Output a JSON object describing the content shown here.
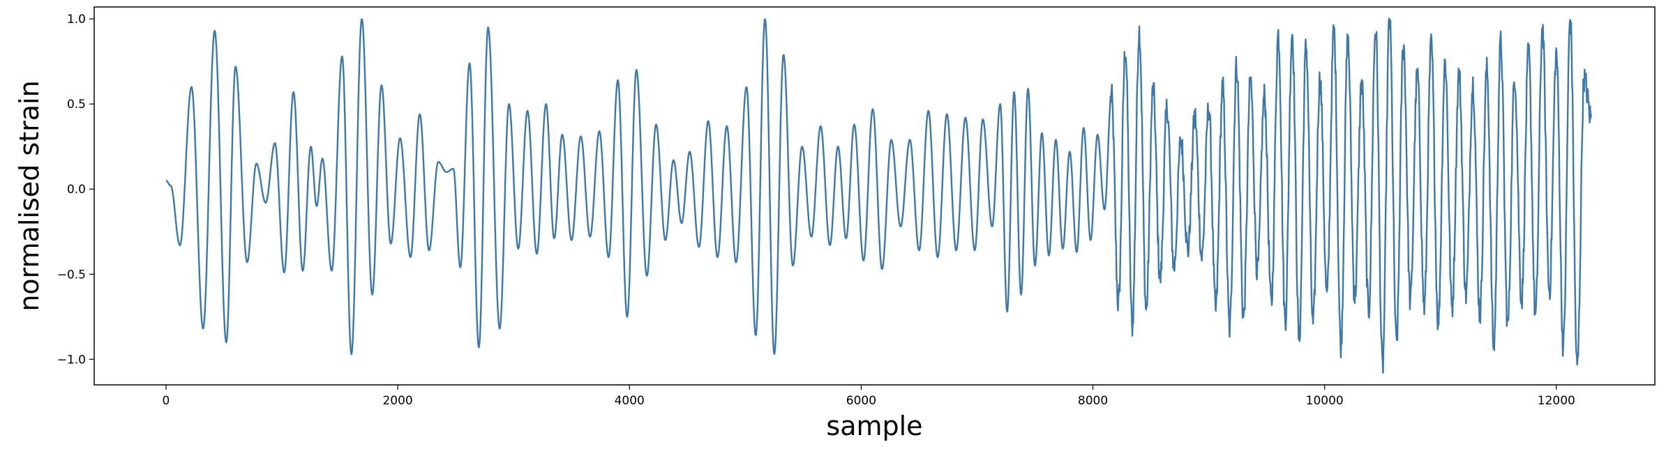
{
  "chart_data": {
    "type": "line",
    "title": "",
    "xlabel": "sample",
    "ylabel": "normalised strain",
    "xlim": [
      -620,
      12850
    ],
    "ylim": [
      -1.15,
      1.07
    ],
    "xticks": [
      0,
      2000,
      4000,
      6000,
      8000,
      10000,
      12000
    ],
    "xtick_labels": [
      "0",
      "2000",
      "4000",
      "6000",
      "8000",
      "10000",
      "12000"
    ],
    "yticks": [
      1.0,
      0.5,
      0.0,
      -0.5,
      -1.0
    ],
    "ytick_labels": [
      "1.0",
      "0.5",
      "0.0",
      "−0.5",
      "−1.0"
    ],
    "grid": false,
    "legend": "none",
    "line_color": "#3a78b0",
    "series": [
      {
        "x_start": 0,
        "x_step": 1,
        "count": 12300,
        "keypoints": [
          [
            0,
            0.05
          ],
          [
            40,
            0.02
          ],
          [
            120,
            -0.33
          ],
          [
            220,
            0.6
          ],
          [
            320,
            -0.82
          ],
          [
            420,
            0.93
          ],
          [
            520,
            -0.9
          ],
          [
            600,
            0.72
          ],
          [
            700,
            -0.43
          ],
          [
            780,
            0.15
          ],
          [
            860,
            -0.08
          ],
          [
            940,
            0.27
          ],
          [
            1020,
            -0.49
          ],
          [
            1100,
            0.57
          ],
          [
            1180,
            -0.48
          ],
          [
            1250,
            0.25
          ],
          [
            1300,
            -0.1
          ],
          [
            1350,
            0.18
          ],
          [
            1430,
            -0.48
          ],
          [
            1520,
            0.78
          ],
          [
            1600,
            -0.97
          ],
          [
            1690,
            1.0
          ],
          [
            1780,
            -0.62
          ],
          [
            1860,
            0.61
          ],
          [
            1940,
            -0.32
          ],
          [
            2020,
            0.3
          ],
          [
            2110,
            -0.4
          ],
          [
            2190,
            0.44
          ],
          [
            2270,
            -0.36
          ],
          [
            2350,
            0.16
          ],
          [
            2420,
            0.1
          ],
          [
            2480,
            0.12
          ],
          [
            2540,
            -0.46
          ],
          [
            2620,
            0.74
          ],
          [
            2700,
            -0.93
          ],
          [
            2780,
            0.95
          ],
          [
            2880,
            -0.82
          ],
          [
            2960,
            0.5
          ],
          [
            3040,
            -0.35
          ],
          [
            3120,
            0.46
          ],
          [
            3200,
            -0.38
          ],
          [
            3280,
            0.5
          ],
          [
            3350,
            -0.29
          ],
          [
            3420,
            0.32
          ],
          [
            3500,
            -0.3
          ],
          [
            3580,
            0.31
          ],
          [
            3660,
            -0.28
          ],
          [
            3740,
            0.34
          ],
          [
            3820,
            -0.4
          ],
          [
            3900,
            0.64
          ],
          [
            3980,
            -0.75
          ],
          [
            4060,
            0.7
          ],
          [
            4150,
            -0.51
          ],
          [
            4230,
            0.38
          ],
          [
            4310,
            -0.3
          ],
          [
            4380,
            0.17
          ],
          [
            4450,
            -0.2
          ],
          [
            4520,
            0.22
          ],
          [
            4600,
            -0.34
          ],
          [
            4680,
            0.4
          ],
          [
            4760,
            -0.4
          ],
          [
            4840,
            0.37
          ],
          [
            4920,
            -0.43
          ],
          [
            5010,
            0.6
          ],
          [
            5090,
            -0.86
          ],
          [
            5170,
            1.0
          ],
          [
            5250,
            -0.97
          ],
          [
            5330,
            0.79
          ],
          [
            5410,
            -0.45
          ],
          [
            5490,
            0.25
          ],
          [
            5570,
            -0.28
          ],
          [
            5650,
            0.37
          ],
          [
            5730,
            -0.33
          ],
          [
            5800,
            0.25
          ],
          [
            5870,
            -0.29
          ],
          [
            5940,
            0.38
          ],
          [
            6020,
            -0.42
          ],
          [
            6100,
            0.47
          ],
          [
            6180,
            -0.47
          ],
          [
            6260,
            0.29
          ],
          [
            6340,
            -0.22
          ],
          [
            6420,
            0.29
          ],
          [
            6500,
            -0.36
          ],
          [
            6580,
            0.46
          ],
          [
            6660,
            -0.4
          ],
          [
            6740,
            0.44
          ],
          [
            6820,
            -0.36
          ],
          [
            6900,
            0.42
          ],
          [
            6980,
            -0.36
          ],
          [
            7050,
            0.41
          ],
          [
            7130,
            -0.22
          ],
          [
            7200,
            0.5
          ],
          [
            7260,
            -0.72
          ],
          [
            7320,
            0.57
          ],
          [
            7380,
            -0.62
          ],
          [
            7440,
            0.59
          ],
          [
            7500,
            -0.45
          ],
          [
            7560,
            0.33
          ],
          [
            7620,
            -0.39
          ],
          [
            7680,
            0.29
          ],
          [
            7740,
            -0.35
          ],
          [
            7800,
            0.22
          ],
          [
            7860,
            -0.37
          ],
          [
            7920,
            0.36
          ],
          [
            7980,
            -0.3
          ],
          [
            8040,
            0.32
          ],
          [
            8100,
            -0.12
          ],
          [
            8160,
            0.55
          ],
          [
            8220,
            -0.68
          ],
          [
            8280,
            0.82
          ],
          [
            8340,
            -0.8
          ],
          [
            8400,
            0.93
          ],
          [
            8460,
            -0.71
          ],
          [
            8520,
            0.59
          ],
          [
            8580,
            -0.53
          ],
          [
            8640,
            0.48
          ],
          [
            8700,
            -0.46
          ],
          [
            8760,
            0.29
          ],
          [
            8820,
            -0.36
          ],
          [
            8880,
            0.43
          ],
          [
            8940,
            -0.4
          ],
          [
            9000,
            0.48
          ],
          [
            9060,
            -0.71
          ],
          [
            9120,
            0.6
          ],
          [
            9180,
            -0.82
          ],
          [
            9240,
            0.73
          ],
          [
            9300,
            -0.76
          ],
          [
            9360,
            0.64
          ],
          [
            9420,
            -0.48
          ],
          [
            9480,
            0.55
          ],
          [
            9540,
            -0.68
          ],
          [
            9600,
            0.91
          ],
          [
            9660,
            -0.77
          ],
          [
            9720,
            0.92
          ],
          [
            9780,
            -0.88
          ],
          [
            9840,
            0.84
          ],
          [
            9900,
            -0.8
          ],
          [
            9960,
            0.65
          ],
          [
            10020,
            -0.63
          ],
          [
            10080,
            0.93
          ],
          [
            10140,
            -0.91
          ],
          [
            10200,
            0.87
          ],
          [
            10260,
            -0.64
          ],
          [
            10320,
            0.63
          ],
          [
            10380,
            -0.72
          ],
          [
            10440,
            0.94
          ],
          [
            10500,
            -1.05
          ],
          [
            10560,
            1.0
          ],
          [
            10620,
            -0.91
          ],
          [
            10680,
            0.85
          ],
          [
            10740,
            -0.66
          ],
          [
            10800,
            0.68
          ],
          [
            10860,
            -0.7
          ],
          [
            10920,
            0.85
          ],
          [
            10980,
            -0.78
          ],
          [
            11040,
            0.75
          ],
          [
            11100,
            -0.7
          ],
          [
            11160,
            0.68
          ],
          [
            11220,
            -0.62
          ],
          [
            11280,
            0.62
          ],
          [
            11340,
            -0.74
          ],
          [
            11400,
            0.7
          ],
          [
            11460,
            -0.92
          ],
          [
            11520,
            0.86
          ],
          [
            11580,
            -0.8
          ],
          [
            11640,
            0.66
          ],
          [
            11700,
            -0.65
          ],
          [
            11760,
            0.8
          ],
          [
            11820,
            -0.75
          ],
          [
            11880,
            0.94
          ],
          [
            11940,
            -0.6
          ],
          [
            12000,
            0.8
          ],
          [
            12060,
            -0.92
          ],
          [
            12120,
            1.0
          ],
          [
            12180,
            -1.05
          ],
          [
            12240,
            0.65
          ],
          [
            12300,
            0.42
          ]
        ]
      }
    ]
  }
}
